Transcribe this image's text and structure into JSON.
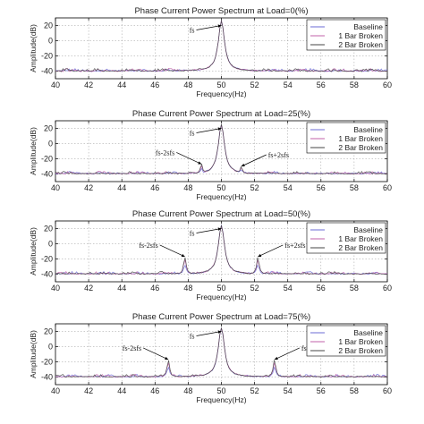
{
  "chart_data": [
    {
      "type": "line",
      "title": "Phase Current Power Spectrum at Load=0(%)",
      "xlabel": "Frequency(Hz)",
      "ylabel": "Amplitude(dB)",
      "xlim": [
        40,
        60
      ],
      "ylim": [
        -50,
        30
      ],
      "xticks": [
        "40",
        "42",
        "44",
        "46",
        "48",
        "50",
        "52",
        "54",
        "56",
        "58",
        "60"
      ],
      "yticks": [
        "20",
        "0",
        "-20",
        "-40"
      ],
      "grid": true,
      "legend": [
        "Baseline",
        "1 Bar Broken",
        "2 Bar Broken"
      ],
      "legend_position": "top-right",
      "peaks": [
        {
          "x": 50,
          "y": 26
        }
      ],
      "annotations": [
        {
          "text": "fs",
          "x": 50,
          "y": 20
        }
      ],
      "noise_floor": -40
    },
    {
      "type": "line",
      "title": "Phase Current Power Spectrum at Load=25(%)",
      "xlabel": "Frequency(Hz)",
      "ylabel": "Amplitude(dB)",
      "xlim": [
        40,
        60
      ],
      "ylim": [
        -50,
        30
      ],
      "xticks": [
        "40",
        "42",
        "44",
        "46",
        "48",
        "50",
        "52",
        "54",
        "56",
        "58",
        "60"
      ],
      "yticks": [
        "20",
        "0",
        "-20",
        "-40"
      ],
      "grid": true,
      "legend": [
        "Baseline",
        "1 Bar Broken",
        "2 Bar Broken"
      ],
      "legend_position": "top-right",
      "peaks": [
        {
          "x": 50,
          "y": 25
        },
        {
          "x": 48.8,
          "y": -27
        },
        {
          "x": 51.2,
          "y": -30
        }
      ],
      "annotations": [
        {
          "text": "fs",
          "x": 50,
          "y": 20
        },
        {
          "text": "fs-2sfs",
          "x": 48.8,
          "y": -27
        },
        {
          "text": "fs+2sfs",
          "x": 51.2,
          "y": -30
        }
      ],
      "noise_floor": -40
    },
    {
      "type": "line",
      "title": "Phase Current Power Spectrum at Load=50(%)",
      "xlabel": "Frequency(Hz)",
      "ylabel": "Amplitude(dB)",
      "xlim": [
        40,
        60
      ],
      "ylim": [
        -50,
        30
      ],
      "xticks": [
        "40",
        "42",
        "44",
        "46",
        "48",
        "50",
        "52",
        "54",
        "56",
        "58",
        "60"
      ],
      "yticks": [
        "20",
        "0",
        "-20",
        "-40"
      ],
      "grid": true,
      "legend": [
        "Baseline",
        "1 Bar Broken",
        "2 Bar Broken"
      ],
      "legend_position": "top-right",
      "peaks": [
        {
          "x": 50,
          "y": 24
        },
        {
          "x": 47.8,
          "y": -17
        },
        {
          "x": 52.2,
          "y": -17
        }
      ],
      "annotations": [
        {
          "text": "fs",
          "x": 50,
          "y": 20
        },
        {
          "text": "fs-2sfs",
          "x": 47.8,
          "y": -17
        },
        {
          "text": "fs+2sfs",
          "x": 52.2,
          "y": -17
        }
      ],
      "noise_floor": -40
    },
    {
      "type": "line",
      "title": "Phase Current Power Spectrum at Load=75(%)",
      "xlabel": "Frequency(Hz)",
      "ylabel": "Amplitude(dB)",
      "xlim": [
        40,
        60
      ],
      "ylim": [
        -50,
        30
      ],
      "xticks": [
        "40",
        "42",
        "44",
        "46",
        "48",
        "50",
        "52",
        "54",
        "56",
        "58",
        "60"
      ],
      "yticks": [
        "20",
        "0",
        "-20",
        "-40"
      ],
      "grid": true,
      "legend": [
        "Baseline",
        "1 Bar Broken",
        "2 Bar Broken"
      ],
      "legend_position": "top-right",
      "peaks": [
        {
          "x": 50,
          "y": 25
        },
        {
          "x": 46.8,
          "y": -17
        },
        {
          "x": 53.2,
          "y": -17
        }
      ],
      "annotations": [
        {
          "text": "fs",
          "x": 50,
          "y": 20
        },
        {
          "text": "fs-2sfs",
          "x": 46.8,
          "y": -17
        },
        {
          "text": "fs+2sfs",
          "x": 53.2,
          "y": -17
        }
      ],
      "noise_floor": -40
    }
  ],
  "series_styles": [
    {
      "name": "Baseline",
      "color": "#6b6bd6"
    },
    {
      "name": "1 Bar Broken",
      "color": "#c060a8"
    },
    {
      "name": "2 Bar Broken",
      "color": "#444444"
    }
  ]
}
